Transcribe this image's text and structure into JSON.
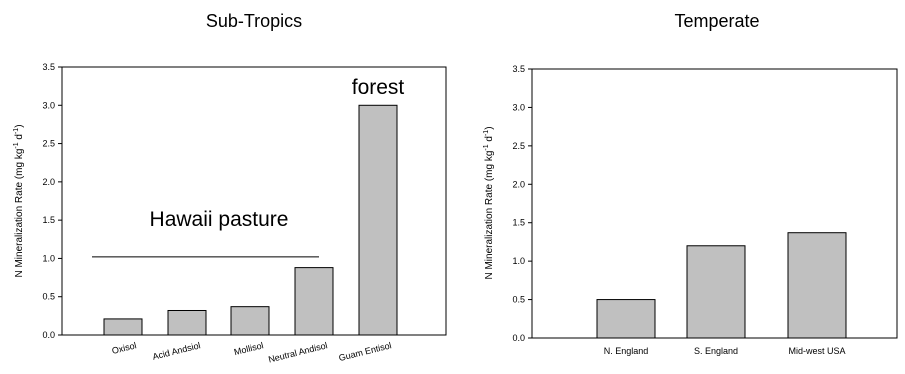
{
  "chart_data": [
    {
      "type": "bar",
      "title": "Sub-Tropics",
      "xlabel": "",
      "ylabel_parts": {
        "pre": "N Mineralization Rate (mg kg",
        "sup1": "-1",
        "mid": " d",
        "sup2": "-1",
        "post": ")"
      },
      "ylim": [
        0,
        3.5
      ],
      "yticks": [
        "0.0",
        "0.5",
        "1.0",
        "1.5",
        "2.0",
        "2.5",
        "3.0",
        "3.5"
      ],
      "categories": [
        "Oxisol",
        "Acid Andsiol",
        "Mollisol",
        "Neutral Andisol",
        "Guam Entisol"
      ],
      "values": [
        0.21,
        0.32,
        0.37,
        0.88,
        3.0
      ],
      "bar_color": "#c0c0c0",
      "annotations": {
        "pasture_label": "Hawaii pasture",
        "pasture_line_y": 1.02,
        "pasture_span": [
          "Oxisol",
          "Neutral Andisol"
        ],
        "forest_label": "forest"
      }
    },
    {
      "type": "bar",
      "title": "Temperate",
      "xlabel": "",
      "ylabel_parts": {
        "pre": "N Mineralization Rate (mg kg",
        "sup1": "-1",
        "mid": " d",
        "sup2": "-1",
        "post": ")"
      },
      "ylim": [
        0,
        3.5
      ],
      "yticks": [
        "0.0",
        "0.5",
        "1.0",
        "1.5",
        "2.0",
        "2.5",
        "3.0",
        "3.5"
      ],
      "categories": [
        "N. England",
        "S. England",
        "Mid-west USA"
      ],
      "values": [
        0.5,
        1.2,
        1.37
      ],
      "bar_color": "#c0c0c0"
    }
  ]
}
